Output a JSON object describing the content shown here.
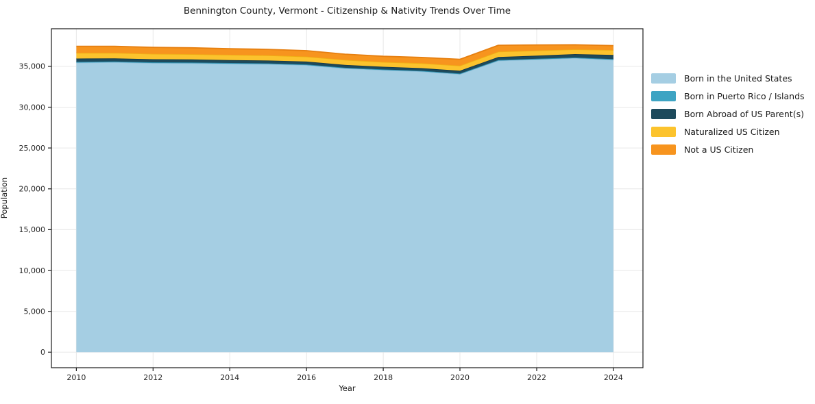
{
  "chart_data": {
    "type": "area",
    "stacked": true,
    "title": "Bennington County, Vermont - Citizenship & Nativity Trends Over Time",
    "xlabel": "Year",
    "ylabel": "Population",
    "x": [
      2010,
      2011,
      2012,
      2013,
      2014,
      2015,
      2016,
      2017,
      2018,
      2019,
      2020,
      2021,
      2022,
      2023,
      2024
    ],
    "series": [
      {
        "id": "born-in-us",
        "name": "Born in the United States",
        "color": "#a5cee3",
        "edge": "#8fc0da",
        "values": [
          35450,
          35500,
          35400,
          35380,
          35320,
          35280,
          35150,
          34750,
          34550,
          34380,
          34050,
          35700,
          35850,
          36000,
          35800
        ]
      },
      {
        "id": "born-puerto-rico-islands",
        "name": "Born in Puerto Rico / Islands",
        "color": "#3ea4c3",
        "edge": "#2f8fae",
        "values": [
          100,
          100,
          90,
          90,
          90,
          80,
          80,
          80,
          70,
          70,
          70,
          80,
          80,
          80,
          90
        ]
      },
      {
        "id": "born-abroad-us-parents",
        "name": "Born Abroad of US Parent(s)",
        "color": "#1d4a5c",
        "edge": "#16394a",
        "values": [
          400,
          380,
          380,
          370,
          360,
          350,
          350,
          340,
          330,
          330,
          340,
          360,
          380,
          420,
          500
        ]
      },
      {
        "id": "naturalized-us-citizen",
        "name": "Naturalized US Citizen",
        "color": "#fcc32d",
        "edge": "#f0ae14",
        "values": [
          700,
          680,
          660,
          650,
          640,
          640,
          620,
          620,
          580,
          600,
          620,
          660,
          630,
          580,
          600
        ]
      },
      {
        "id": "not-a-us-citizen",
        "name": "Not a US Citizen",
        "color": "#f7941e",
        "edge": "#e67f10",
        "values": [
          800,
          790,
          800,
          780,
          750,
          730,
          720,
          700,
          700,
          710,
          780,
          780,
          680,
          560,
          550
        ]
      }
    ],
    "xticks": [
      2010,
      2012,
      2014,
      2016,
      2018,
      2020,
      2022,
      2024
    ],
    "yticks": [
      0,
      5000,
      10000,
      15000,
      20000,
      25000,
      30000,
      35000
    ],
    "xlim": [
      2009.35,
      2024.77
    ],
    "ylim": [
      -1900,
      39600
    ],
    "grid": true,
    "legend_position": "right",
    "colors": {
      "background": "#ffffff",
      "grid": "#e7e7e7",
      "spine": "#1a1a1a",
      "tick_text": "#262626"
    }
  }
}
